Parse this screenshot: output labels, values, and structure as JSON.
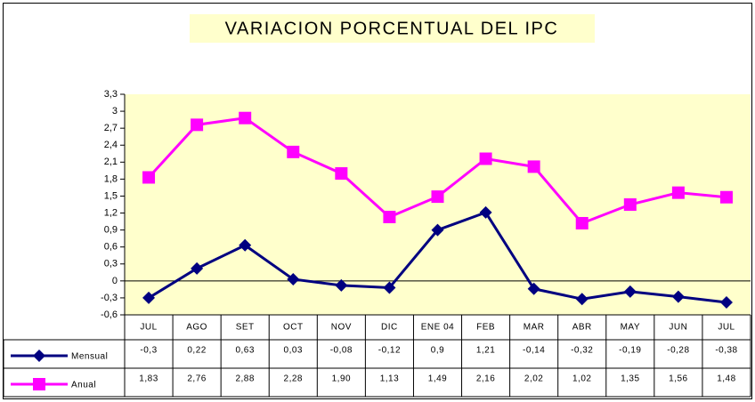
{
  "chart_data": {
    "type": "line",
    "title": "VARIACION  PORCENTUAL DEL IPC",
    "categories": [
      "JUL",
      "AGO",
      "SET",
      "OCT",
      "NOV",
      "DIC",
      "ENE 04",
      "FEB",
      "MAR",
      "ABR",
      "MAY",
      "JUN",
      "JUL"
    ],
    "series": [
      {
        "name": "Mensual",
        "color": "#000080",
        "marker": "diamond",
        "values": [
          -0.3,
          0.22,
          0.63,
          0.03,
          -0.08,
          -0.12,
          0.9,
          1.21,
          -0.14,
          -0.32,
          -0.19,
          -0.28,
          -0.38
        ],
        "value_labels": [
          "-0,3",
          "0,22",
          "0,63",
          "0,03",
          "-0,08",
          "-0,12",
          "0,9",
          "1,21",
          "-0,14",
          "-0,32",
          "-0,19",
          "-0,28",
          "-0,38"
        ]
      },
      {
        "name": "Anual",
        "color": "#FF00FF",
        "marker": "square",
        "values": [
          1.83,
          2.76,
          2.88,
          2.28,
          1.9,
          1.13,
          1.49,
          2.16,
          2.02,
          1.02,
          1.35,
          1.56,
          1.48
        ],
        "value_labels": [
          "1,83",
          "2,76",
          "2,88",
          "2,28",
          "1,90",
          "1,13",
          "1,49",
          "2,16",
          "2,02",
          "1,02",
          "1,35",
          "1,56",
          "1,48"
        ]
      }
    ],
    "ylim": [
      -0.6,
      3.3
    ],
    "yticks": [
      {
        "value": -0.6,
        "label": "-0,6"
      },
      {
        "value": -0.3,
        "label": "-0,3"
      },
      0,
      {
        "value": 0.3,
        "label": "0,3"
      },
      {
        "value": 0.6,
        "label": "0,6"
      },
      {
        "value": 0.9,
        "label": "0,9"
      },
      {
        "value": 1.2,
        "label": "1,2"
      },
      {
        "value": 1.5,
        "label": "1,5"
      },
      {
        "value": 1.8,
        "label": "1,8"
      },
      {
        "value": 2.1,
        "label": "2,1"
      },
      {
        "value": 2.4,
        "label": "2,4"
      },
      {
        "value": 2.7,
        "label": "2,7"
      },
      3,
      {
        "value": 3.3,
        "label": "3,3"
      }
    ],
    "grid": false,
    "plot_background": "#FFFFCC"
  }
}
